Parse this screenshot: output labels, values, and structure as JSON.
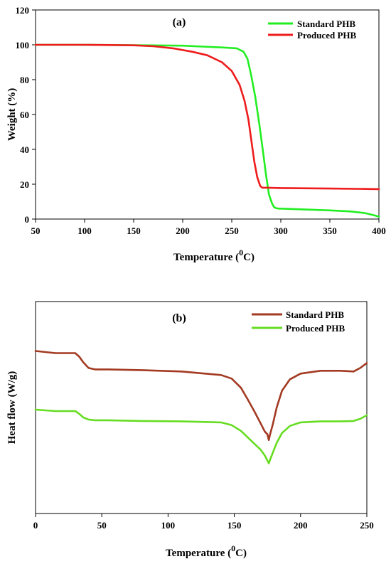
{
  "chart_data": [
    {
      "type": "line",
      "panel_label": "(a)",
      "xlabel": "Temperature (",
      "xlabel_sup": "0",
      "xlabel_suffix": "C)",
      "ylabel": "Weight (%)",
      "xlim": [
        50,
        400
      ],
      "ylim": [
        0,
        120
      ],
      "x_ticks": [
        "50",
        "100",
        "150",
        "200",
        "250",
        "300",
        "350",
        "400"
      ],
      "y_ticks": [
        "0",
        "20",
        "40",
        "60",
        "80",
        "100",
        "120"
      ],
      "legend_position": "top-right",
      "series": [
        {
          "name": "Standard PHB",
          "color": "#22ee22",
          "x": [
            50,
            100,
            150,
            200,
            220,
            240,
            255,
            262,
            266,
            270,
            274,
            278,
            282,
            285,
            288,
            291,
            293,
            295,
            298,
            300,
            320,
            350,
            370,
            385,
            395,
            400
          ],
          "y": [
            100,
            100,
            99.8,
            99.5,
            99,
            98.5,
            98,
            96,
            92,
            82,
            70,
            55,
            38,
            25,
            14,
            9,
            7,
            6.3,
            6,
            6,
            5.6,
            5,
            4.4,
            3.5,
            2.2,
            1.4
          ]
        },
        {
          "name": "Produced PHB",
          "color": "#ee1c1c",
          "x": [
            50,
            100,
            150,
            170,
            190,
            210,
            225,
            240,
            250,
            258,
            263,
            267,
            270,
            273,
            276,
            279,
            281,
            283,
            285,
            300,
            350,
            400
          ],
          "y": [
            100,
            100,
            99.7,
            99.2,
            98,
            96,
            94,
            90,
            85,
            77,
            68,
            57,
            45,
            33,
            24,
            19,
            18,
            18,
            18,
            17.8,
            17.5,
            17.2
          ]
        }
      ]
    },
    {
      "type": "line",
      "panel_label": "(b)",
      "xlabel": "Temperature (",
      "xlabel_sup": "0",
      "xlabel_suffix": "C)",
      "ylabel": "Heat flow (W/g)",
      "xlim": [
        0,
        250
      ],
      "ylim": [
        -20,
        10
      ],
      "y_tick_labels_shown": false,
      "x_ticks": [
        "0",
        "50",
        "100",
        "150",
        "200",
        "250"
      ],
      "legend_position": "top-right",
      "series": [
        {
          "name": "Standard PHB",
          "color": "#a33a22",
          "x": [
            0,
            15,
            30,
            33,
            36,
            40,
            45,
            55,
            80,
            110,
            140,
            148,
            155,
            160,
            165,
            170,
            173,
            175,
            176,
            177,
            179,
            182,
            186,
            192,
            200,
            215,
            230,
            240,
            245,
            250
          ],
          "y": [
            3.0,
            2.7,
            2.7,
            2.2,
            1.4,
            0.6,
            0.4,
            0.4,
            0.3,
            0.1,
            -0.4,
            -0.9,
            -2.2,
            -3.8,
            -5.5,
            -7.3,
            -8.4,
            -8.8,
            -9.6,
            -8.8,
            -7.4,
            -5.0,
            -2.6,
            -1.0,
            -0.2,
            0.2,
            0.2,
            0.1,
            0.6,
            1.3
          ]
        },
        {
          "name": "Produced PHB",
          "color": "#66dd22",
          "x": [
            0,
            15,
            30,
            33,
            36,
            40,
            45,
            55,
            80,
            110,
            140,
            148,
            155,
            160,
            165,
            170,
            173,
            175,
            176,
            177,
            179,
            182,
            186,
            192,
            200,
            215,
            230,
            240,
            245,
            250
          ],
          "y": [
            -5.3,
            -5.5,
            -5.5,
            -5.9,
            -6.4,
            -6.7,
            -6.8,
            -6.8,
            -6.9,
            -6.95,
            -7.1,
            -7.5,
            -8.3,
            -9.2,
            -10.1,
            -11.0,
            -11.8,
            -12.5,
            -12.9,
            -12.4,
            -11.4,
            -10.0,
            -8.6,
            -7.6,
            -7.1,
            -6.95,
            -6.95,
            -6.9,
            -6.6,
            -6.1
          ]
        }
      ]
    }
  ]
}
